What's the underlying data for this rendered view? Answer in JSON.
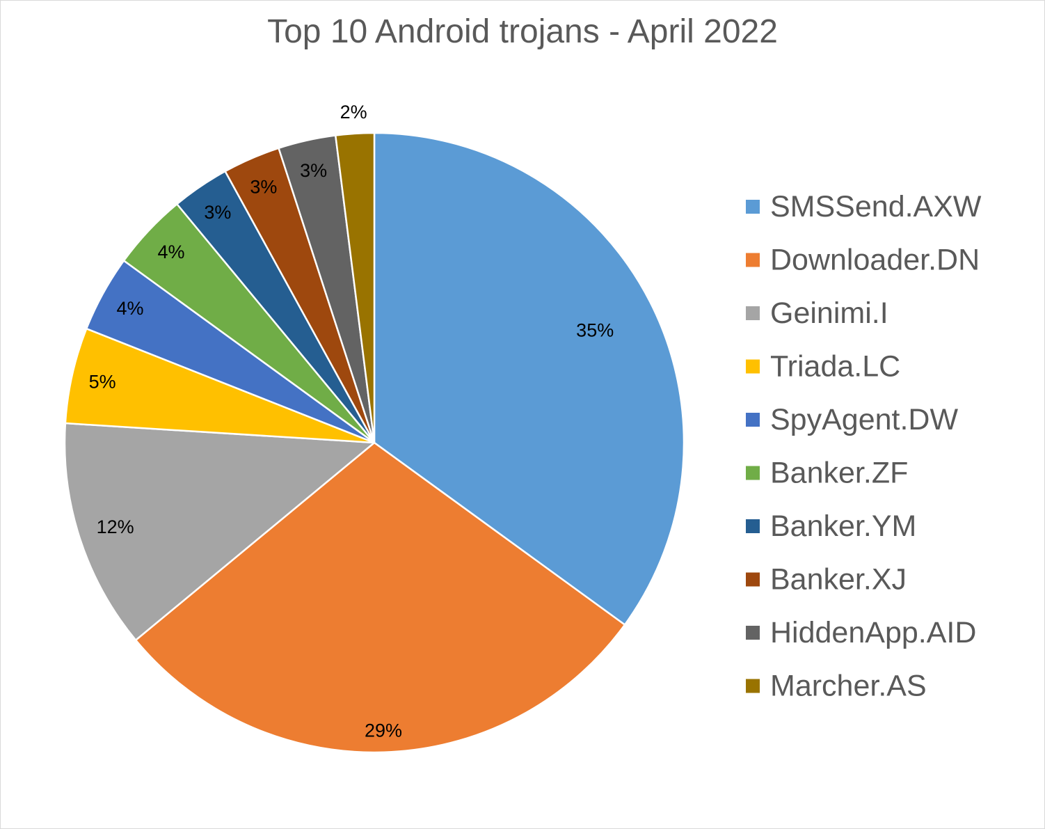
{
  "chart_data": {
    "type": "pie",
    "title": "Top 10 Android trojans - April 2022",
    "categories": [
      "SMSSend.AXW",
      "Downloader.DN",
      "Geinimi.I",
      "Triada.LC",
      "SpyAgent.DW",
      "Banker.ZF",
      "Banker.YM",
      "Banker.XJ",
      "HiddenApp.AID",
      "Marcher.AS"
    ],
    "values": [
      35,
      29,
      12,
      5,
      4,
      4,
      3,
      3,
      3,
      2
    ],
    "data_labels": [
      "35%",
      "29%",
      "12%",
      "5%",
      "4%",
      "4%",
      "3%",
      "3%",
      "3%",
      "2%"
    ],
    "colors": [
      "#5b9bd5",
      "#ed7d31",
      "#a5a5a5",
      "#ffc000",
      "#4472c4",
      "#70ad47",
      "#255e91",
      "#9e480e",
      "#636363",
      "#997300"
    ],
    "legend_position": "right"
  }
}
